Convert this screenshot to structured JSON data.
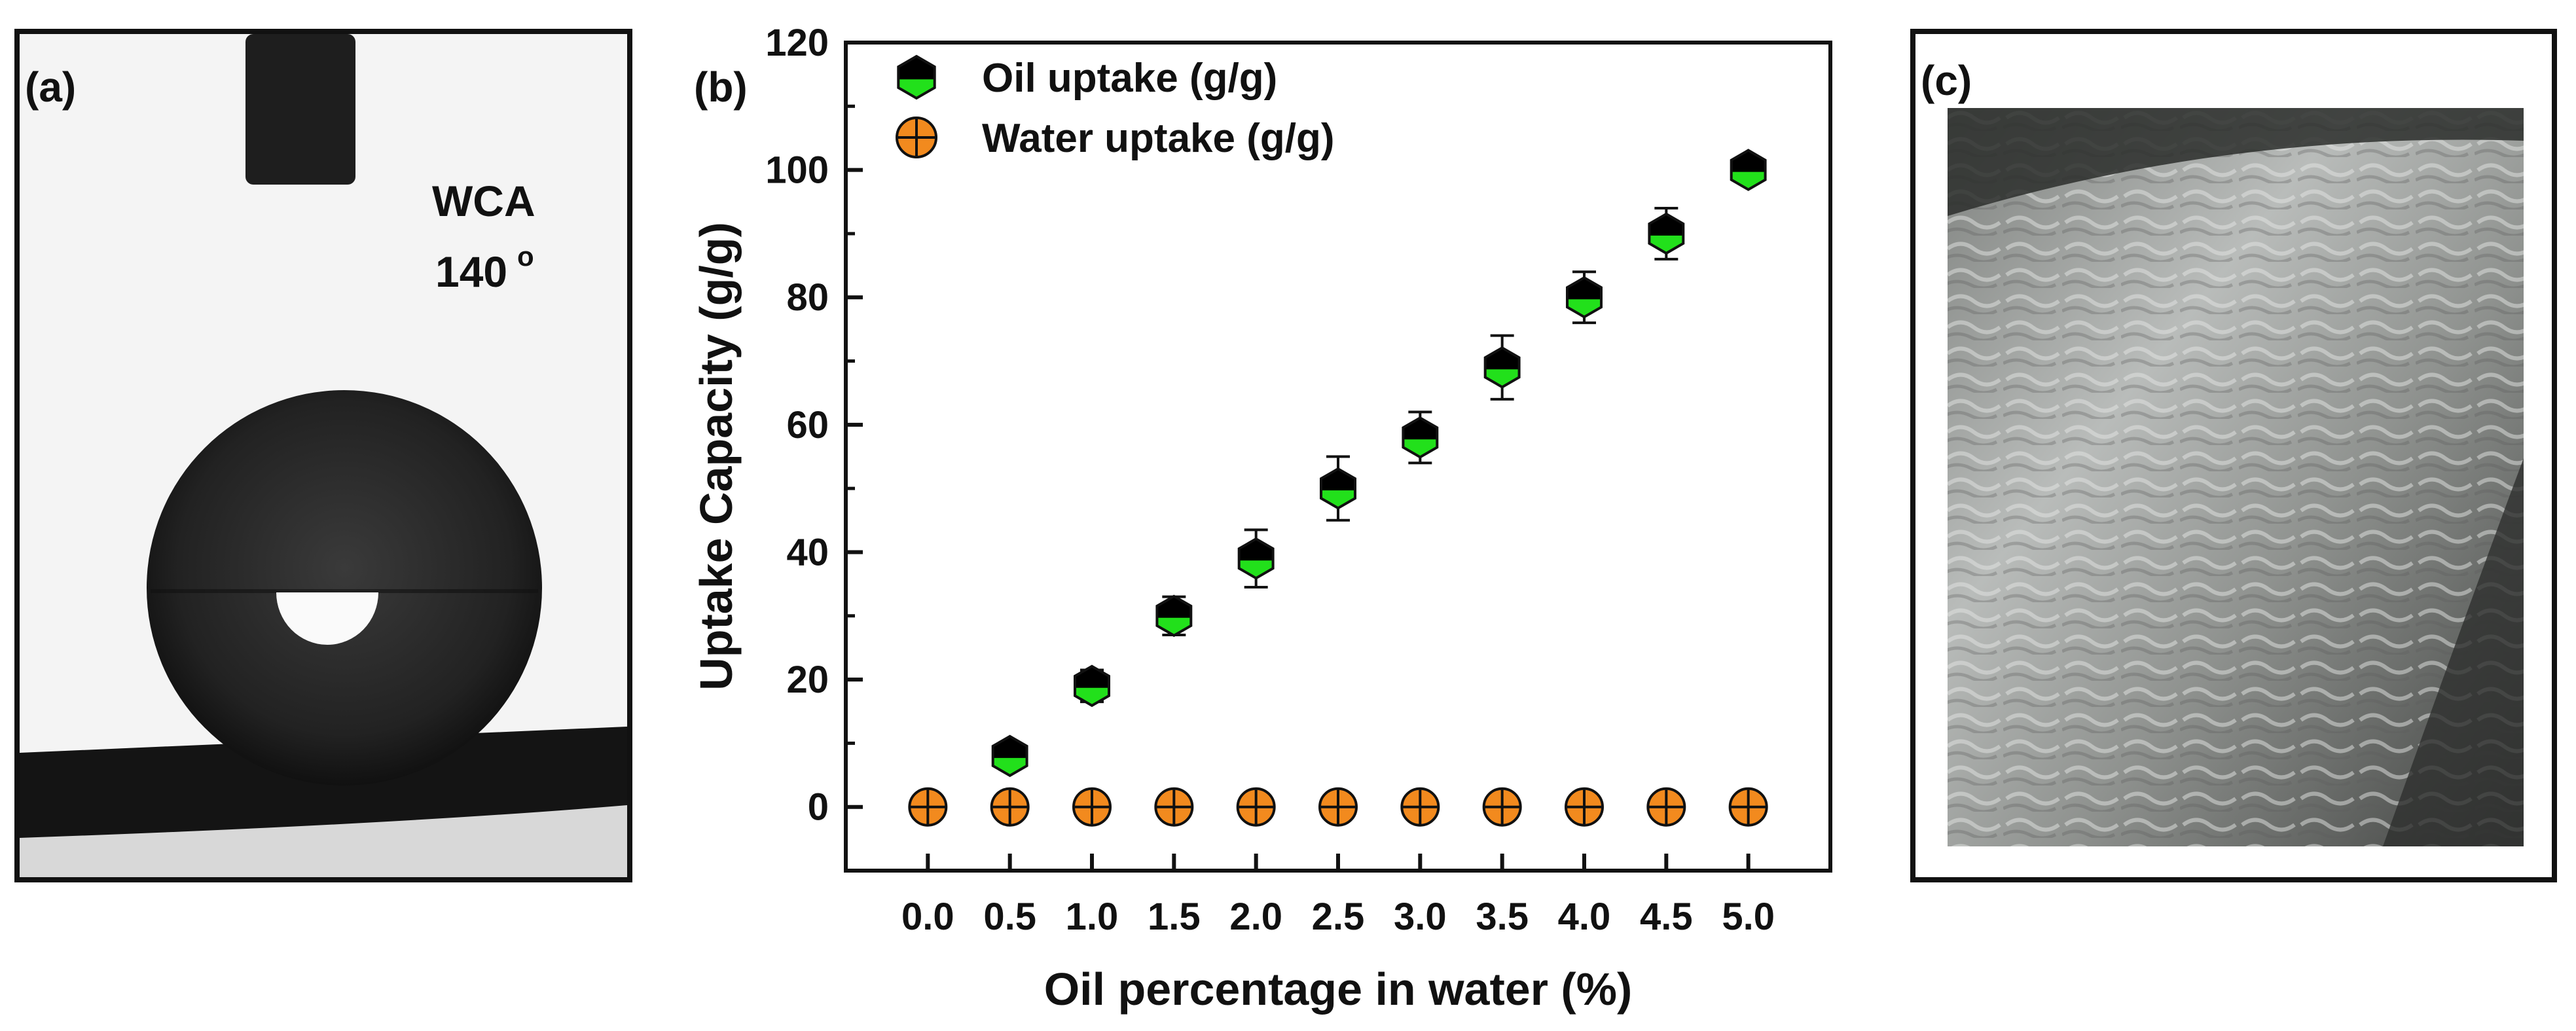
{
  "panels": {
    "a": {
      "label": "(a)",
      "wca_label": "WCA",
      "wca_value": "140",
      "wca_unit": "o"
    },
    "b": {
      "label": "(b)"
    },
    "c": {
      "label": "(c)"
    }
  },
  "chart_data": {
    "type": "scatter",
    "title": "",
    "xlabel": "Oil percentage in water (%)",
    "ylabel": "Uptake Capacity (g/g)",
    "xlim": [
      -0.5,
      5.5
    ],
    "ylim": [
      -10,
      120
    ],
    "x": [
      0.0,
      0.5,
      1.0,
      1.5,
      2.0,
      2.5,
      3.0,
      3.5,
      4.0,
      4.5,
      5.0
    ],
    "x_tick_labels": [
      "0.0",
      "0.5",
      "1.0",
      "1.5",
      "2.0",
      "2.5",
      "3.0",
      "3.5",
      "4.0",
      "4.5",
      "5.0"
    ],
    "y_ticks": [
      0,
      20,
      40,
      60,
      80,
      100,
      120
    ],
    "y_tick_labels": [
      "0",
      "20",
      "40",
      "60",
      "80",
      "100",
      "120"
    ],
    "grid": false,
    "legend_position": "top-left",
    "series": [
      {
        "name": "Oil uptake (g/g)",
        "marker": "half-filled-hexagon",
        "colors": {
          "fill": "#22e01b",
          "top": "#000000"
        },
        "x": [
          0.5,
          1.0,
          1.5,
          2.0,
          2.5,
          3.0,
          3.5,
          4.0,
          4.5,
          5.0
        ],
        "values": [
          8,
          19,
          30,
          39,
          50,
          58,
          69,
          80,
          90,
          100
        ],
        "errors": [
          2,
          2.5,
          3,
          4.5,
          5,
          4,
          5,
          4,
          4,
          2
        ]
      },
      {
        "name": "Water uptake (g/g)",
        "marker": "crossed-circle",
        "colors": {
          "fill": "#f28a1e"
        },
        "x": [
          0.0,
          0.5,
          1.0,
          1.5,
          2.0,
          2.5,
          3.0,
          3.5,
          4.0,
          4.5,
          5.0
        ],
        "values": [
          0,
          0,
          0,
          0,
          0,
          0,
          0,
          0,
          0,
          0,
          0
        ],
        "errors": [
          0,
          0,
          0,
          0,
          0,
          0,
          0,
          0,
          0,
          0,
          0
        ]
      }
    ]
  }
}
